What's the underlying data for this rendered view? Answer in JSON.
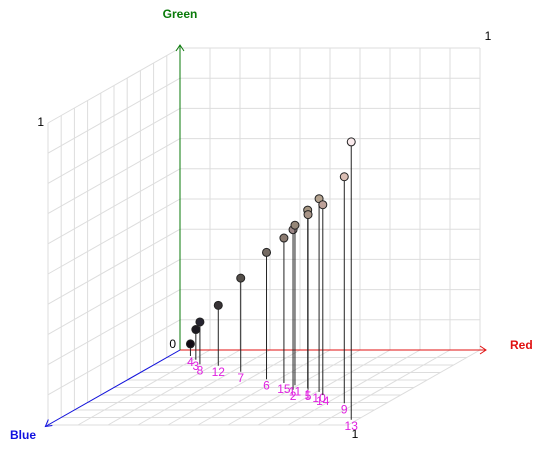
{
  "chart_data": {
    "type": "scatter",
    "x_label": "Red",
    "y_label": "Green",
    "z_label": "Blue",
    "xlim": [
      0,
      1
    ],
    "ylim": [
      0,
      1
    ],
    "zlim": [
      0,
      1
    ],
    "xticks": [
      1
    ],
    "yticks": [
      0,
      1
    ],
    "zticks": [
      1
    ],
    "grid": true,
    "categories": [
      "1",
      "2",
      "3",
      "4",
      "5",
      "6",
      "7",
      "8",
      "9",
      "10",
      "11",
      "12",
      "13",
      "14",
      "15"
    ],
    "x": [
      0.65,
      0.61,
      0.11,
      0.07,
      0.66,
      0.46,
      0.33,
      0.15,
      0.86,
      0.71,
      0.59,
      0.22,
      0.98,
      0.74,
      0.54
    ],
    "y": [
      0.59,
      0.53,
      0.1,
      0.04,
      0.58,
      0.42,
      0.31,
      0.14,
      0.75,
      0.64,
      0.53,
      0.2,
      0.92,
      0.63,
      0.48
    ],
    "z": [
      0.51,
      0.53,
      0.13,
      0.08,
      0.53,
      0.39,
      0.29,
      0.19,
      0.71,
      0.56,
      0.47,
      0.21,
      0.93,
      0.6,
      0.44
    ],
    "label_color": "#e020e0"
  }
}
